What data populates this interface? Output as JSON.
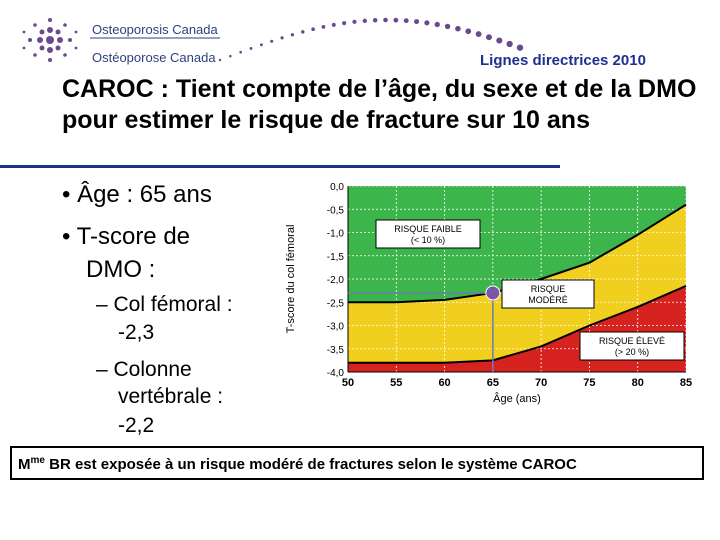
{
  "header": {
    "logo_en": "Osteoporosis Canada",
    "logo_fr": "Ostéoporose Canada",
    "subtitle": "Lignes directrices 2010"
  },
  "slide": {
    "title": "CAROC : Tient compte de l’âge, du sexe et de la DMO pour estimer le risque de fracture sur 10 ans",
    "bullet1": "•  Âge : 65 ans",
    "bullet2": "•  T-score de",
    "bullet2b": "DMO :",
    "sub1": "– Col fémoral :",
    "sub1b": "-2,3",
    "sub2": "– Colonne",
    "sub2b": "vertébrale :",
    "sub2c": "-2,2",
    "footer_prefix": "M",
    "footer_sup": "me",
    "footer_rest": " BR est exposée à un risque modéré de fractures selon le système CAROC"
  },
  "chart_data": {
    "type": "line",
    "xlabel": "Âge (ans)",
    "ylabel": "T-score du col fémoral",
    "x_ticks": [
      "50",
      "55",
      "60",
      "65",
      "70",
      "75",
      "80",
      "85"
    ],
    "y_ticks": [
      "0,0",
      "-0,5",
      "-1,0",
      "-1,5",
      "-2,0",
      "-2,5",
      "-3,0",
      "-3,5",
      "-4,0"
    ],
    "xlim": [
      50,
      85
    ],
    "ylim": [
      -4.0,
      0.0
    ],
    "grid": true,
    "series": [
      {
        "x": [
          50,
          55,
          60,
          65,
          70,
          75,
          80,
          85
        ],
        "y": [
          -2.5,
          -2.5,
          -2.45,
          -2.3,
          -2.0,
          -1.65,
          -1.05,
          -0.4
        ]
      },
      {
        "x": [
          50,
          55,
          60,
          65,
          70,
          75,
          80,
          85
        ],
        "y": [
          -3.8,
          -3.8,
          -3.8,
          -3.75,
          -3.45,
          -3.0,
          -2.6,
          -2.15
        ]
      }
    ],
    "marker": {
      "x": 65,
      "y": -2.3,
      "color": "#7a57a6"
    },
    "zones": [
      {
        "label": "RISQUE FAIBLE",
        "sub": "(< 10 %)",
        "color": "#3cb64b"
      },
      {
        "label": "RISQUE MODÉRÉ",
        "sub": "",
        "color": "#f0cf1e"
      },
      {
        "label": "RISQUE ÉLEVÉ",
        "sub": "(> 20 %)",
        "color": "#d6231f"
      }
    ]
  }
}
